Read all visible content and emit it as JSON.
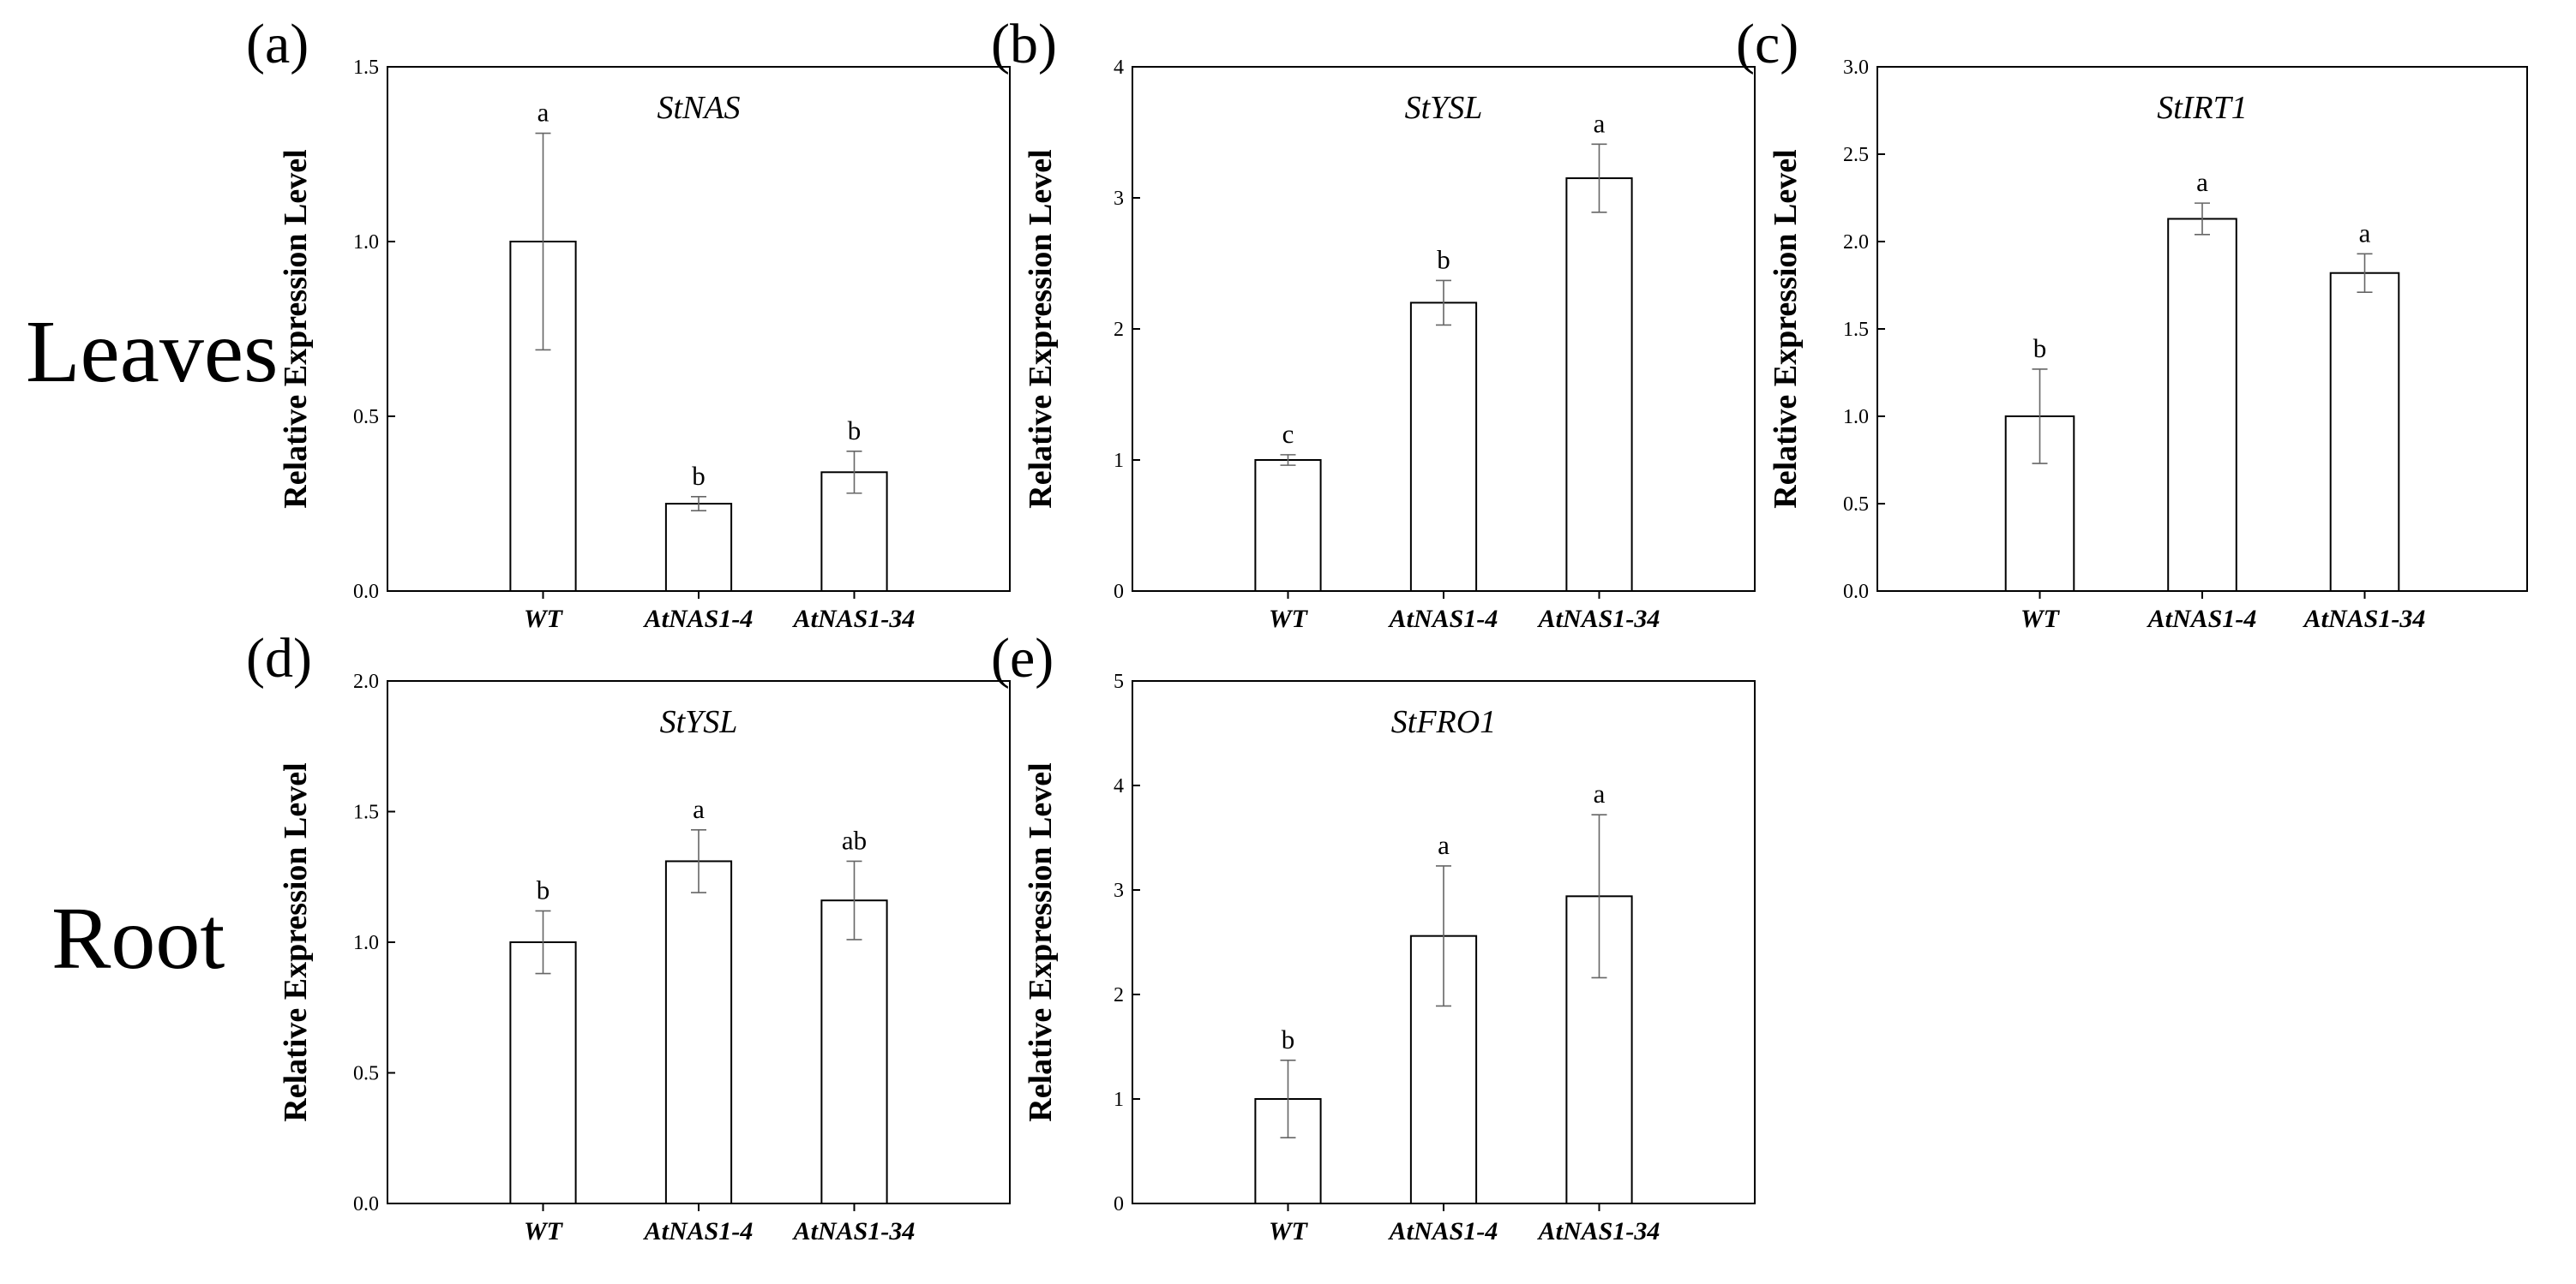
{
  "row_labels": {
    "leaves": "Leaves",
    "root": "Root"
  },
  "chart_data": [
    {
      "type": "bar",
      "panel": "(a)",
      "title": "StNAS",
      "xlabel": "",
      "ylabel": "Relative Expression Level",
      "categories": [
        "WT",
        "AtNAS1-4",
        "AtNAS1-34"
      ],
      "values": [
        1.0,
        0.25,
        0.34
      ],
      "errors": [
        0.31,
        0.02,
        0.06
      ],
      "significance": [
        "a",
        "b",
        "b"
      ],
      "ylim": [
        0,
        1.5
      ],
      "yticks": [
        "0.0",
        "0.5",
        "1.0",
        "1.5"
      ],
      "grid": false
    },
    {
      "type": "bar",
      "panel": "(b)",
      "title": "StYSL",
      "xlabel": "",
      "ylabel": "Relative Expression Level",
      "categories": [
        "WT",
        "AtNAS1-4",
        "AtNAS1-34"
      ],
      "values": [
        1.0,
        2.2,
        3.15
      ],
      "errors": [
        0.04,
        0.17,
        0.26
      ],
      "significance": [
        "c",
        "b",
        "a"
      ],
      "ylim": [
        0,
        4
      ],
      "yticks": [
        "0",
        "1",
        "2",
        "3",
        "4"
      ],
      "grid": false
    },
    {
      "type": "bar",
      "panel": "(c)",
      "title": "StIRT1",
      "xlabel": "",
      "ylabel": "Relative Expression Level",
      "categories": [
        "WT",
        "AtNAS1-4",
        "AtNAS1-34"
      ],
      "values": [
        1.0,
        2.13,
        1.82
      ],
      "errors": [
        0.27,
        0.09,
        0.11
      ],
      "significance": [
        "b",
        "a",
        "a"
      ],
      "ylim": [
        0,
        3.0
      ],
      "yticks": [
        "0.0",
        "0.5",
        "1.0",
        "1.5",
        "2.0",
        "2.5",
        "3.0"
      ],
      "grid": false
    },
    {
      "type": "bar",
      "panel": "(d)",
      "title": "StYSL",
      "xlabel": "",
      "ylabel": "Relative Expression Level",
      "categories": [
        "WT",
        "AtNAS1-4",
        "AtNAS1-34"
      ],
      "values": [
        1.0,
        1.31,
        1.16
      ],
      "errors": [
        0.12,
        0.12,
        0.15
      ],
      "significance": [
        "b",
        "a",
        "ab"
      ],
      "ylim": [
        0,
        2.0
      ],
      "yticks": [
        "0.0",
        "0.5",
        "1.0",
        "1.5",
        "2.0"
      ],
      "grid": false
    },
    {
      "type": "bar",
      "panel": "(e)",
      "title": "StFRO1",
      "xlabel": "",
      "ylabel": "Relative Expression Level",
      "categories": [
        "WT",
        "AtNAS1-4",
        "AtNAS1-34"
      ],
      "values": [
        1.0,
        2.56,
        2.94
      ],
      "errors": [
        0.37,
        0.67,
        0.78
      ],
      "significance": [
        "b",
        "a",
        "a"
      ],
      "ylim": [
        0,
        5
      ],
      "yticks": [
        "0",
        "1",
        "2",
        "3",
        "4",
        "5"
      ],
      "grid": false
    }
  ]
}
